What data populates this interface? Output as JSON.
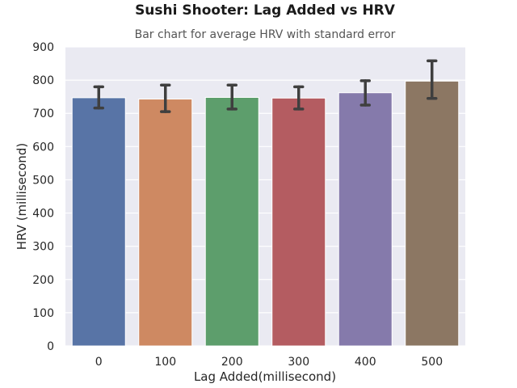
{
  "chart_data": {
    "type": "bar",
    "title": "Sushi Shooter: Lag Added vs HRV",
    "subtitle": "Bar chart for average HRV with standard error",
    "xlabel": "Lag Added(millisecond)",
    "ylabel": "HRV (millisecond)",
    "categories": [
      "0",
      "100",
      "200",
      "300",
      "400",
      "500"
    ],
    "values": [
      747,
      743,
      748,
      746,
      762,
      797
    ],
    "error_low": [
      716,
      705,
      713,
      713,
      725,
      745
    ],
    "error_high": [
      780,
      785,
      785,
      780,
      798,
      858
    ],
    "ylim": [
      0,
      900
    ],
    "yticks": [
      "0",
      "100",
      "200",
      "300",
      "400",
      "500",
      "600",
      "700",
      "800",
      "900"
    ],
    "grid": true,
    "colors": [
      "#5874a6",
      "#ce8962",
      "#5d9e6c",
      "#b45c61",
      "#857aab",
      "#8c7763"
    ],
    "background": "#eaeaf2",
    "error_color": "#3f3f3f"
  }
}
